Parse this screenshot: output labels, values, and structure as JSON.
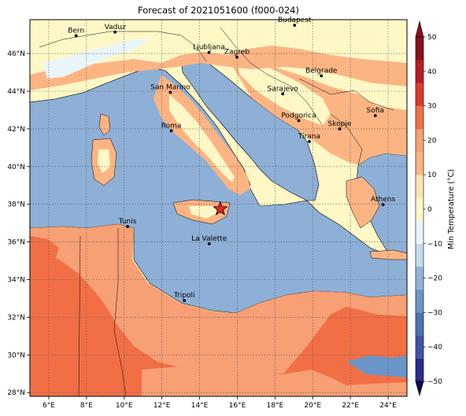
{
  "title": "Forecast of 2021051600 (f000-024)",
  "map": {
    "lon_labels": [
      "6°E",
      "8°E",
      "10°E",
      "12°E",
      "14°E",
      "16°E",
      "18°E",
      "20°E",
      "22°E",
      "24°E"
    ],
    "lat_labels": [
      "28°N",
      "30°N",
      "32°N",
      "34°N",
      "36°N",
      "38°N",
      "40°N",
      "42°N",
      "44°N",
      "46°N"
    ],
    "marker": {
      "name": "star",
      "color": "#e8231e",
      "lon": 15.1,
      "lat": 37.75
    }
  },
  "cities": [
    {
      "name": "Bern",
      "lon": 7.45,
      "lat": 46.95
    },
    {
      "name": "Vaduz",
      "lon": 9.52,
      "lat": 47.14
    },
    {
      "name": "Budapest",
      "lon": 19.04,
      "lat": 47.5
    },
    {
      "name": "Ljubljana",
      "lon": 14.5,
      "lat": 46.06
    },
    {
      "name": "Zagreb",
      "lon": 15.98,
      "lat": 45.81
    },
    {
      "name": "Belgrade",
      "lon": 20.46,
      "lat": 44.82
    },
    {
      "name": "San Marino",
      "lon": 12.45,
      "lat": 43.94
    },
    {
      "name": "Sarajevo",
      "lon": 18.41,
      "lat": 43.86
    },
    {
      "name": "Sofia",
      "lon": 23.32,
      "lat": 42.7
    },
    {
      "name": "Podgorica",
      "lon": 19.26,
      "lat": 42.44
    },
    {
      "name": "Skopje",
      "lon": 21.43,
      "lat": 42.0
    },
    {
      "name": "Roma",
      "lon": 12.5,
      "lat": 41.9
    },
    {
      "name": "Tirana",
      "lon": 19.82,
      "lat": 41.33
    },
    {
      "name": "Athens",
      "lon": 23.73,
      "lat": 37.98
    },
    {
      "name": "Tunis",
      "lon": 10.18,
      "lat": 36.81
    },
    {
      "name": "La Valette",
      "lon": 14.51,
      "lat": 35.9
    },
    {
      "name": "Tripoli",
      "lon": 13.19,
      "lat": 32.89
    }
  ],
  "colorbar": {
    "label": "Min Temperature (°C)",
    "ticks": [
      "50",
      "40",
      "30",
      "20",
      "10",
      "0",
      "−10",
      "−20",
      "−30",
      "−40",
      "−50"
    ],
    "colors": [
      "#2b2c8f",
      "#3f55a8",
      "#4a73b2",
      "#6b95c6",
      "#92b3d8",
      "#c4dcec",
      "#eaf5fa",
      "#fff8c6",
      "#fde6ad",
      "#fdb483",
      "#f79f75",
      "#f26f46",
      "#dd3b2b",
      "#bb1b22",
      "#8c0f1c"
    ]
  }
}
